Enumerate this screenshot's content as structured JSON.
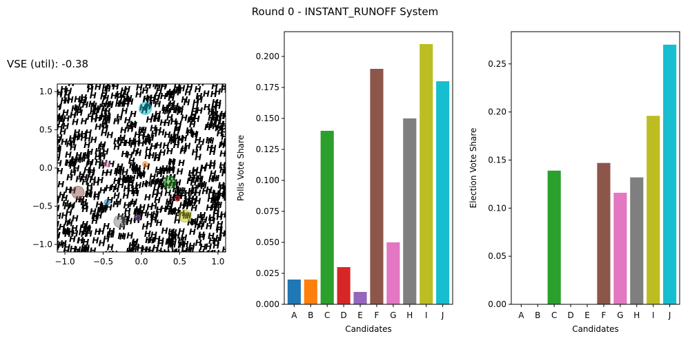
{
  "figure": {
    "suptitle": "Round 0 - INSTANT_RUNOFF System",
    "vse_label": "VSE (util): -0.38"
  },
  "colors": {
    "A": "#1f77b4",
    "B": "#ff7f0e",
    "C": "#2ca02c",
    "D": "#d62728",
    "E": "#9467bd",
    "F": "#8c564b",
    "G": "#e377c2",
    "H": "#7f7f7f",
    "I": "#bcbd22",
    "J": "#17becf"
  },
  "chart_data": [
    {
      "type": "scatter",
      "marker": "H",
      "xlim": [
        -1.1,
        1.1
      ],
      "ylim": [
        -1.1,
        1.1
      ],
      "xticks": [
        -1.0,
        -0.5,
        0.0,
        0.5,
        1.0
      ],
      "yticks": [
        -1.0,
        -0.5,
        0.0,
        0.5,
        1.0
      ],
      "xtick_labels": [
        "−1.0",
        "−0.5",
        "0.0",
        "0.5",
        "1.0"
      ],
      "ytick_labels": [
        "−1.0",
        "−0.5",
        "0.0",
        "0.5",
        "1.0"
      ],
      "candidate_positions": [
        {
          "name": "A",
          "x": -0.45,
          "y": -0.45,
          "size": 1
        },
        {
          "name": "B",
          "x": 0.05,
          "y": 0.05,
          "size": 1
        },
        {
          "name": "C",
          "x": 0.37,
          "y": -0.19,
          "size": 2
        },
        {
          "name": "D",
          "x": 0.47,
          "y": -0.4,
          "size": 1
        },
        {
          "name": "E",
          "x": -0.05,
          "y": -0.65,
          "size": 1
        },
        {
          "name": "F",
          "x": -0.83,
          "y": -0.32,
          "size": 2
        },
        {
          "name": "G",
          "x": -0.45,
          "y": 0.05,
          "size": 1
        },
        {
          "name": "H",
          "x": -0.28,
          "y": -0.7,
          "size": 2
        },
        {
          "name": "I",
          "x": 0.57,
          "y": -0.63,
          "size": 2
        },
        {
          "name": "J",
          "x": 0.05,
          "y": 0.78,
          "size": 2
        }
      ]
    },
    {
      "type": "bar",
      "categories": [
        "A",
        "B",
        "C",
        "D",
        "E",
        "F",
        "G",
        "H",
        "I",
        "J"
      ],
      "values": [
        0.02,
        0.02,
        0.14,
        0.03,
        0.01,
        0.19,
        0.05,
        0.15,
        0.21,
        0.18
      ],
      "xlabel": "Candidates",
      "ylabel": "Polls Vote Share",
      "ylim": [
        0,
        0.22
      ],
      "yticks": [
        0.0,
        0.025,
        0.05,
        0.075,
        0.1,
        0.125,
        0.15,
        0.175,
        0.2
      ],
      "ytick_labels": [
        "0.000",
        "0.025",
        "0.050",
        "0.075",
        "0.100",
        "0.125",
        "0.150",
        "0.175",
        "0.200"
      ]
    },
    {
      "type": "bar",
      "categories": [
        "A",
        "B",
        "C",
        "D",
        "E",
        "F",
        "G",
        "H",
        "I",
        "J"
      ],
      "values": [
        0,
        0,
        0.139,
        0,
        0,
        0.147,
        0.116,
        0.132,
        0.196,
        0.27
      ],
      "xlabel": "Candidates",
      "ylabel": "Election Vote Share",
      "ylim": [
        0,
        0.2835
      ],
      "yticks": [
        0.0,
        0.05,
        0.1,
        0.15,
        0.2,
        0.25
      ],
      "ytick_labels": [
        "0.00",
        "0.05",
        "0.10",
        "0.15",
        "0.20",
        "0.25"
      ]
    }
  ]
}
